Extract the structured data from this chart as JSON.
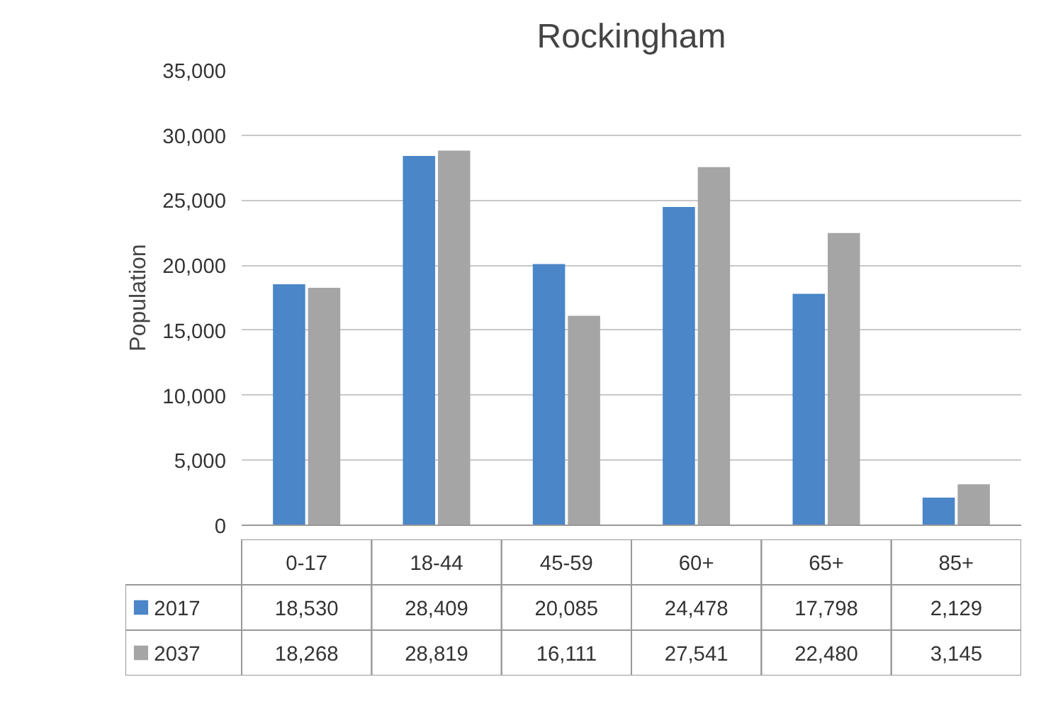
{
  "chart_data": {
    "type": "bar",
    "title": "Rockingham",
    "ylabel": "Population",
    "categories": [
      "0-17",
      "18-44",
      "45-59",
      "60+",
      "65+",
      "85+"
    ],
    "series": [
      {
        "name": "2017",
        "color": "#4a86c8",
        "values": [
          18530,
          28409,
          20085,
          24478,
          17798,
          2129
        ],
        "value_labels": [
          "18,530",
          "28,409",
          "20,085",
          "24,478",
          "17,798",
          "2,129"
        ]
      },
      {
        "name": "2037",
        "color": "#a5a5a5",
        "values": [
          18268,
          28819,
          16111,
          27541,
          22480,
          3145
        ],
        "value_labels": [
          "18,268",
          "28,819",
          "16,111",
          "27,541",
          "22,480",
          "3,145"
        ]
      }
    ],
    "ylim": [
      0,
      35000
    ],
    "yticks": [
      {
        "value": 0,
        "label": "0"
      },
      {
        "value": 5000,
        "label": "5,000"
      },
      {
        "value": 10000,
        "label": "10,000"
      },
      {
        "value": 15000,
        "label": "15,000"
      },
      {
        "value": 20000,
        "label": "20,000"
      },
      {
        "value": 25000,
        "label": "25,000"
      },
      {
        "value": 30000,
        "label": "30,000"
      },
      {
        "value": 35000,
        "label": "35,000"
      }
    ],
    "grid": "y",
    "legend": "bottom"
  }
}
